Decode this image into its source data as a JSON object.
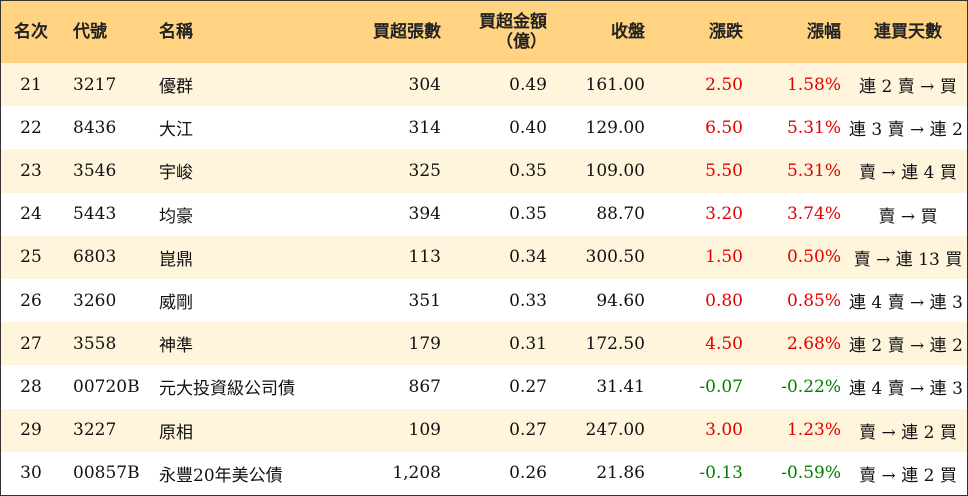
{
  "headers": {
    "rank": "名次",
    "code": "代號",
    "name": "名稱",
    "net_buy_volume": "買超張數",
    "net_buy_amount_line1": "買超金額",
    "net_buy_amount_line2": "（億）",
    "close": "收盤",
    "change": "漲跌",
    "change_pct": "漲幅",
    "buy_streak": "連買天數"
  },
  "colors": {
    "header_bg": "#ffd382",
    "row_alt_bg": "#fff5dc",
    "up": "#e00000",
    "down": "#008000"
  },
  "rows": [
    {
      "rank": "21",
      "code": "3217",
      "name": "優群",
      "volume": "304",
      "amount": "0.49",
      "close": "161.00",
      "change": "2.50",
      "pct": "1.58%",
      "direction": "up",
      "days": "連 2 賣 → 買"
    },
    {
      "rank": "22",
      "code": "8436",
      "name": "大江",
      "volume": "314",
      "amount": "0.40",
      "close": "129.00",
      "change": "6.50",
      "pct": "5.31%",
      "direction": "up",
      "days": "連 3 賣 → 連 2 買"
    },
    {
      "rank": "23",
      "code": "3546",
      "name": "宇峻",
      "volume": "325",
      "amount": "0.35",
      "close": "109.00",
      "change": "5.50",
      "pct": "5.31%",
      "direction": "up",
      "days": "賣 → 連 4 買"
    },
    {
      "rank": "24",
      "code": "5443",
      "name": "均豪",
      "volume": "394",
      "amount": "0.35",
      "close": "88.70",
      "change": "3.20",
      "pct": "3.74%",
      "direction": "up",
      "days": "賣 → 買"
    },
    {
      "rank": "25",
      "code": "6803",
      "name": "崑鼎",
      "volume": "113",
      "amount": "0.34",
      "close": "300.50",
      "change": "1.50",
      "pct": "0.50%",
      "direction": "up",
      "days": "賣 → 連 13 買"
    },
    {
      "rank": "26",
      "code": "3260",
      "name": "威剛",
      "volume": "351",
      "amount": "0.33",
      "close": "94.60",
      "change": "0.80",
      "pct": "0.85%",
      "direction": "up",
      "days": "連 4 賣 → 連 3 買"
    },
    {
      "rank": "27",
      "code": "3558",
      "name": "神準",
      "volume": "179",
      "amount": "0.31",
      "close": "172.50",
      "change": "4.50",
      "pct": "2.68%",
      "direction": "up",
      "days": "連 2 賣 → 連 2 買"
    },
    {
      "rank": "28",
      "code": "00720B",
      "name": "元大投資級公司債",
      "volume": "867",
      "amount": "0.27",
      "close": "31.41",
      "change": "-0.07",
      "pct": "-0.22%",
      "direction": "down",
      "days": "連 4 賣 → 連 3 買"
    },
    {
      "rank": "29",
      "code": "3227",
      "name": "原相",
      "volume": "109",
      "amount": "0.27",
      "close": "247.00",
      "change": "3.00",
      "pct": "1.23%",
      "direction": "up",
      "days": "賣 → 連 2 買"
    },
    {
      "rank": "30",
      "code": "00857B",
      "name": "永豐20年美公債",
      "volume": "1,208",
      "amount": "0.26",
      "close": "21.86",
      "change": "-0.13",
      "pct": "-0.59%",
      "direction": "down",
      "days": "賣 → 連 2 買"
    }
  ]
}
